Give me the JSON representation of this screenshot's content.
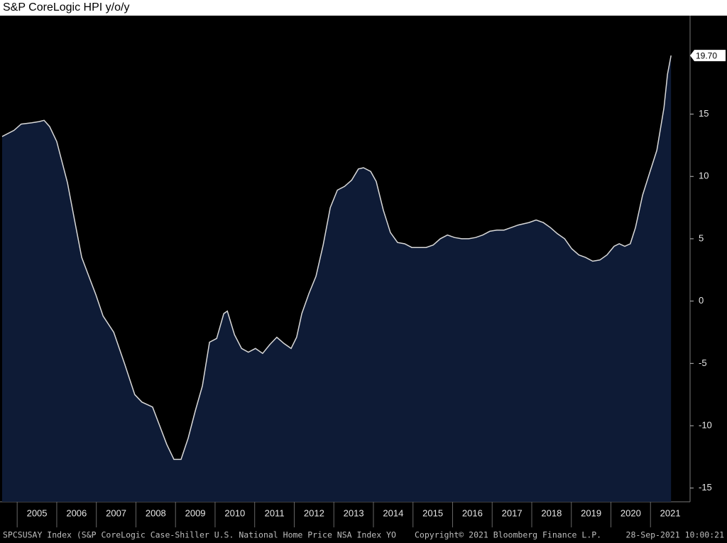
{
  "chart_data": {
    "type": "area",
    "title": "S&P CoreLogic HPI y/o/y",
    "footer_left": "SPCSUSAY Index (S&P CoreLogic Case-Shiller U.S. National Home Price NSA Index YO",
    "footer_center": "Copyright© 2021 Bloomberg Finance L.P.",
    "footer_right": "28-Sep-2021 10:00:21",
    "last_value_label": "19.70",
    "color": "#0e1b36",
    "line_color": "#d9d9d9",
    "x": [
      2004.62,
      2004.92,
      2005.1,
      2005.37,
      2005.55,
      2005.68,
      2005.82,
      2006.0,
      2006.27,
      2006.45,
      2006.63,
      2006.81,
      2006.99,
      2007.17,
      2007.44,
      2007.71,
      2007.97,
      2008.15,
      2008.42,
      2008.6,
      2008.78,
      2008.96,
      2009.14,
      2009.32,
      2009.5,
      2009.68,
      2009.86,
      2010.04,
      2010.22,
      2010.31,
      2010.49,
      2010.67,
      2010.84,
      2011.02,
      2011.2,
      2011.38,
      2011.56,
      2011.74,
      2011.92,
      2012.06,
      2012.19,
      2012.37,
      2012.55,
      2012.73,
      2012.91,
      2013.09,
      2013.27,
      2013.45,
      2013.62,
      2013.75,
      2013.93,
      2014.07,
      2014.25,
      2014.43,
      2014.61,
      2014.79,
      2014.97,
      2015.15,
      2015.33,
      2015.51,
      2015.69,
      2015.87,
      2016.05,
      2016.23,
      2016.41,
      2016.58,
      2016.76,
      2016.94,
      2017.12,
      2017.3,
      2017.48,
      2017.66,
      2017.93,
      2018.11,
      2018.29,
      2018.47,
      2018.65,
      2018.83,
      2019.01,
      2019.19,
      2019.36,
      2019.54,
      2019.72,
      2019.9,
      2020.08,
      2020.21,
      2020.35,
      2020.49,
      2020.62,
      2020.8,
      2020.98,
      2021.16,
      2021.34,
      2021.43,
      2021.52
    ],
    "values": [
      13.2,
      13.7,
      14.2,
      14.3,
      14.4,
      14.5,
      14.0,
      12.8,
      9.5,
      6.5,
      3.5,
      2.0,
      0.5,
      -1.2,
      -2.5,
      -5.0,
      -7.5,
      -8.1,
      -8.5,
      -10.0,
      -11.5,
      -12.7,
      -12.7,
      -11.0,
      -8.8,
      -6.8,
      -3.3,
      -3.0,
      -1.0,
      -0.8,
      -2.7,
      -3.8,
      -4.1,
      -3.8,
      -4.2,
      -3.5,
      -2.9,
      -3.4,
      -3.8,
      -2.9,
      -1.0,
      0.6,
      2.0,
      4.5,
      7.5,
      8.9,
      9.2,
      9.7,
      10.6,
      10.7,
      10.4,
      9.6,
      7.3,
      5.5,
      4.7,
      4.6,
      4.3,
      4.3,
      4.3,
      4.5,
      5.0,
      5.3,
      5.1,
      5.0,
      5.0,
      5.1,
      5.3,
      5.6,
      5.7,
      5.7,
      5.9,
      6.1,
      6.3,
      6.5,
      6.3,
      5.9,
      5.4,
      5.0,
      4.2,
      3.7,
      3.5,
      3.2,
      3.3,
      3.7,
      4.4,
      4.6,
      4.4,
      4.6,
      5.9,
      8.5,
      10.3,
      12.1,
      15.5,
      18.2,
      19.7
    ],
    "xlim": [
      2004.62,
      2022.0
    ],
    "xticks": [
      2005,
      2006,
      2007,
      2008,
      2009,
      2010,
      2011,
      2012,
      2013,
      2014,
      2015,
      2016,
      2017,
      2018,
      2019,
      2020,
      2021
    ],
    "ylim": [
      -16.1,
      22.9
    ],
    "yticks": [
      -15,
      -10,
      -5,
      0,
      5,
      10,
      15
    ]
  }
}
